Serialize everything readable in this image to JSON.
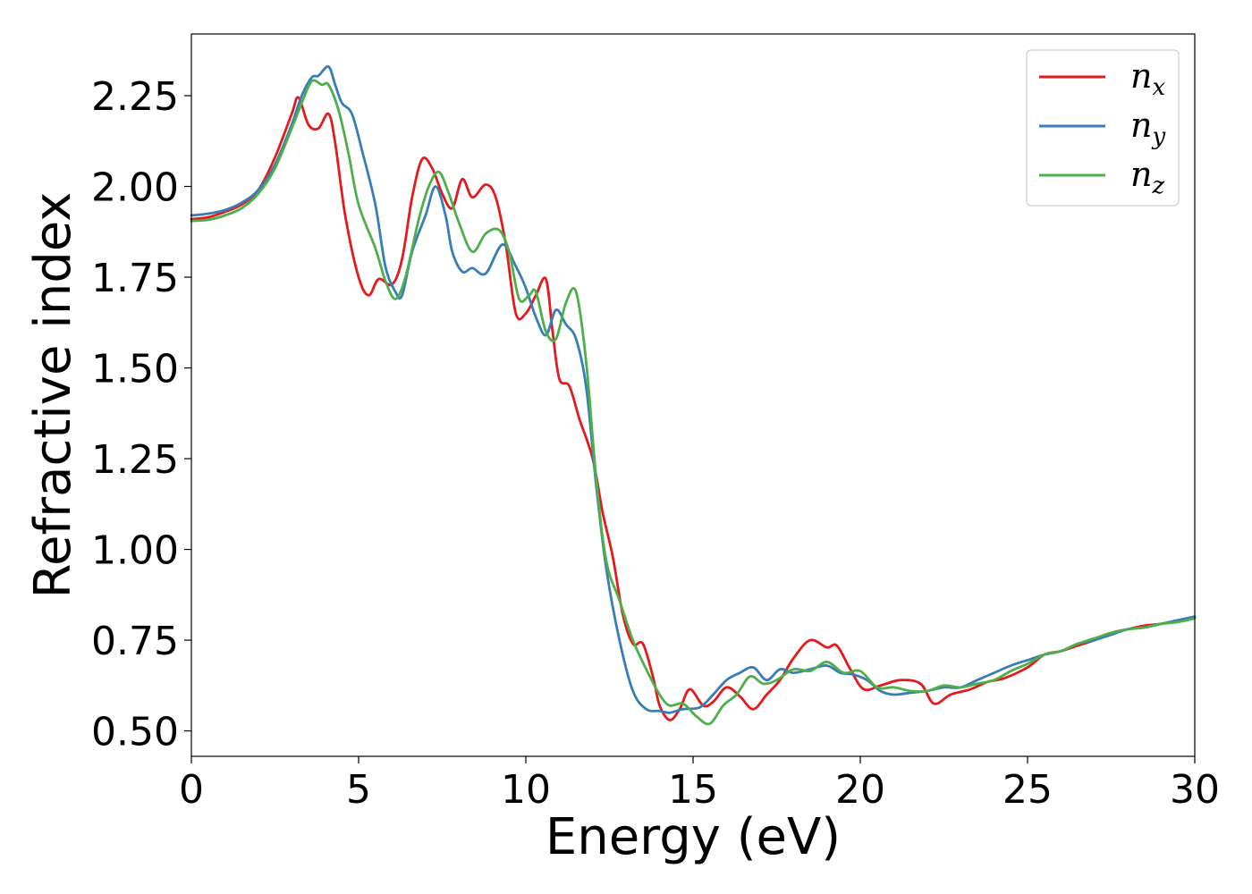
{
  "chart_data": {
    "type": "line",
    "title": "",
    "xlabel": "Energy (eV)",
    "ylabel": "Refractive index",
    "xlim": [
      0,
      30
    ],
    "ylim": [
      0.43,
      2.42
    ],
    "xticks": [
      0,
      5,
      10,
      15,
      20,
      25,
      30
    ],
    "xtick_labels": [
      "0",
      "5",
      "10",
      "15",
      "20",
      "25",
      "30"
    ],
    "yticks": [
      0.5,
      0.75,
      1.0,
      1.25,
      1.5,
      1.75,
      2.0,
      2.25
    ],
    "ytick_labels": [
      "0.50",
      "0.75",
      "1.00",
      "1.25",
      "1.50",
      "1.75",
      "2.00",
      "2.25"
    ],
    "grid": false,
    "legend_position": "top-right",
    "series": [
      {
        "name": "n",
        "subscript": "x",
        "color": "#e41a1c",
        "points": [
          [
            0,
            1.91
          ],
          [
            0.5,
            1.915
          ],
          [
            1,
            1.93
          ],
          [
            1.5,
            1.95
          ],
          [
            2,
            1.99
          ],
          [
            2.5,
            2.08
          ],
          [
            3,
            2.2
          ],
          [
            3.2,
            2.245
          ],
          [
            3.5,
            2.17
          ],
          [
            3.8,
            2.16
          ],
          [
            4.1,
            2.2
          ],
          [
            4.3,
            2.12
          ],
          [
            4.6,
            1.92
          ],
          [
            5,
            1.75
          ],
          [
            5.3,
            1.7
          ],
          [
            5.6,
            1.745
          ],
          [
            6,
            1.73
          ],
          [
            6.3,
            1.8
          ],
          [
            6.6,
            1.97
          ],
          [
            6.9,
            2.075
          ],
          [
            7.2,
            2.05
          ],
          [
            7.5,
            1.98
          ],
          [
            7.8,
            1.94
          ],
          [
            8.1,
            2.02
          ],
          [
            8.4,
            1.97
          ],
          [
            8.8,
            2.005
          ],
          [
            9.1,
            1.97
          ],
          [
            9.4,
            1.84
          ],
          [
            9.7,
            1.65
          ],
          [
            10,
            1.65
          ],
          [
            10.3,
            1.7
          ],
          [
            10.6,
            1.745
          ],
          [
            10.8,
            1.6
          ],
          [
            11,
            1.47
          ],
          [
            11.3,
            1.45
          ],
          [
            11.6,
            1.36
          ],
          [
            12,
            1.25
          ],
          [
            12.3,
            1.1
          ],
          [
            12.6,
            0.98
          ],
          [
            12.9,
            0.82
          ],
          [
            13.2,
            0.74
          ],
          [
            13.5,
            0.74
          ],
          [
            13.8,
            0.65
          ],
          [
            14,
            0.57
          ],
          [
            14.3,
            0.53
          ],
          [
            14.6,
            0.56
          ],
          [
            14.9,
            0.615
          ],
          [
            15.3,
            0.57
          ],
          [
            15.6,
            0.58
          ],
          [
            16,
            0.62
          ],
          [
            16.4,
            0.595
          ],
          [
            16.8,
            0.56
          ],
          [
            17.2,
            0.6
          ],
          [
            17.6,
            0.64
          ],
          [
            18,
            0.7
          ],
          [
            18.5,
            0.75
          ],
          [
            19,
            0.73
          ],
          [
            19.3,
            0.735
          ],
          [
            19.7,
            0.67
          ],
          [
            20.1,
            0.615
          ],
          [
            20.6,
            0.625
          ],
          [
            21.2,
            0.64
          ],
          [
            21.8,
            0.63
          ],
          [
            22.2,
            0.575
          ],
          [
            22.7,
            0.6
          ],
          [
            23.3,
            0.615
          ],
          [
            23.8,
            0.635
          ],
          [
            24.3,
            0.645
          ],
          [
            25,
            0.675
          ],
          [
            25.5,
            0.71
          ],
          [
            26,
            0.72
          ],
          [
            26.5,
            0.735
          ],
          [
            27,
            0.75
          ],
          [
            27.5,
            0.77
          ],
          [
            28,
            0.78
          ],
          [
            28.5,
            0.79
          ],
          [
            29,
            0.795
          ],
          [
            29.5,
            0.805
          ],
          [
            30,
            0.815
          ]
        ]
      },
      {
        "name": "n",
        "subscript": "y",
        "color": "#377eb8",
        "points": [
          [
            0,
            1.92
          ],
          [
            0.5,
            1.925
          ],
          [
            1,
            1.935
          ],
          [
            1.5,
            1.955
          ],
          [
            2,
            1.99
          ],
          [
            2.5,
            2.06
          ],
          [
            3,
            2.17
          ],
          [
            3.3,
            2.25
          ],
          [
            3.6,
            2.3
          ],
          [
            3.8,
            2.305
          ],
          [
            4.1,
            2.33
          ],
          [
            4.3,
            2.28
          ],
          [
            4.5,
            2.23
          ],
          [
            4.8,
            2.2
          ],
          [
            5.1,
            2.1
          ],
          [
            5.5,
            1.95
          ],
          [
            5.8,
            1.78
          ],
          [
            6.1,
            1.71
          ],
          [
            6.3,
            1.7
          ],
          [
            6.6,
            1.82
          ],
          [
            7,
            1.92
          ],
          [
            7.3,
            2.0
          ],
          [
            7.6,
            1.92
          ],
          [
            7.8,
            1.82
          ],
          [
            8.1,
            1.765
          ],
          [
            8.4,
            1.775
          ],
          [
            8.8,
            1.76
          ],
          [
            9.3,
            1.84
          ],
          [
            9.7,
            1.78
          ],
          [
            10,
            1.72
          ],
          [
            10.3,
            1.64
          ],
          [
            10.6,
            1.59
          ],
          [
            10.9,
            1.66
          ],
          [
            11.2,
            1.62
          ],
          [
            11.5,
            1.58
          ],
          [
            11.8,
            1.45
          ],
          [
            12.1,
            1.18
          ],
          [
            12.4,
            0.95
          ],
          [
            12.8,
            0.75
          ],
          [
            13.2,
            0.61
          ],
          [
            13.6,
            0.56
          ],
          [
            14,
            0.555
          ],
          [
            14.3,
            0.55
          ],
          [
            14.7,
            0.56
          ],
          [
            15.2,
            0.565
          ],
          [
            15.6,
            0.6
          ],
          [
            16,
            0.64
          ],
          [
            16.4,
            0.66
          ],
          [
            16.8,
            0.675
          ],
          [
            17.2,
            0.64
          ],
          [
            17.6,
            0.67
          ],
          [
            18,
            0.66
          ],
          [
            18.5,
            0.67
          ],
          [
            19,
            0.68
          ],
          [
            19.4,
            0.66
          ],
          [
            19.8,
            0.655
          ],
          [
            20.2,
            0.64
          ],
          [
            20.6,
            0.61
          ],
          [
            21,
            0.6
          ],
          [
            21.5,
            0.605
          ],
          [
            22,
            0.61
          ],
          [
            22.5,
            0.62
          ],
          [
            23,
            0.62
          ],
          [
            23.5,
            0.64
          ],
          [
            24,
            0.66
          ],
          [
            24.5,
            0.68
          ],
          [
            25,
            0.695
          ],
          [
            25.5,
            0.71
          ],
          [
            26,
            0.72
          ],
          [
            26.5,
            0.74
          ],
          [
            27,
            0.75
          ],
          [
            27.5,
            0.765
          ],
          [
            28,
            0.78
          ],
          [
            28.5,
            0.785
          ],
          [
            29,
            0.795
          ],
          [
            29.5,
            0.805
          ],
          [
            30,
            0.815
          ]
        ]
      },
      {
        "name": "n",
        "subscript": "z",
        "color": "#4daf4a",
        "points": [
          [
            0,
            1.905
          ],
          [
            0.5,
            1.908
          ],
          [
            1,
            1.92
          ],
          [
            1.5,
            1.94
          ],
          [
            2,
            1.98
          ],
          [
            2.5,
            2.05
          ],
          [
            3,
            2.16
          ],
          [
            3.3,
            2.23
          ],
          [
            3.6,
            2.29
          ],
          [
            3.9,
            2.28
          ],
          [
            4.1,
            2.28
          ],
          [
            4.4,
            2.21
          ],
          [
            4.7,
            2.09
          ],
          [
            5,
            1.95
          ],
          [
            5.5,
            1.83
          ],
          [
            5.8,
            1.74
          ],
          [
            6.1,
            1.69
          ],
          [
            6.4,
            1.75
          ],
          [
            6.8,
            1.91
          ],
          [
            7.1,
            2.0
          ],
          [
            7.4,
            2.04
          ],
          [
            7.7,
            1.98
          ],
          [
            8,
            1.9
          ],
          [
            8.4,
            1.82
          ],
          [
            8.8,
            1.87
          ],
          [
            9.2,
            1.88
          ],
          [
            9.5,
            1.82
          ],
          [
            9.8,
            1.69
          ],
          [
            10.1,
            1.7
          ],
          [
            10.3,
            1.71
          ],
          [
            10.6,
            1.6
          ],
          [
            10.9,
            1.58
          ],
          [
            11.2,
            1.68
          ],
          [
            11.5,
            1.71
          ],
          [
            11.8,
            1.52
          ],
          [
            12.1,
            1.2
          ],
          [
            12.4,
            0.97
          ],
          [
            12.8,
            0.86
          ],
          [
            13.2,
            0.75
          ],
          [
            13.6,
            0.67
          ],
          [
            14,
            0.6
          ],
          [
            14.3,
            0.57
          ],
          [
            14.7,
            0.575
          ],
          [
            15.1,
            0.54
          ],
          [
            15.5,
            0.52
          ],
          [
            15.9,
            0.57
          ],
          [
            16.3,
            0.6
          ],
          [
            16.7,
            0.65
          ],
          [
            17.1,
            0.63
          ],
          [
            17.5,
            0.64
          ],
          [
            18,
            0.67
          ],
          [
            18.5,
            0.665
          ],
          [
            19,
            0.69
          ],
          [
            19.5,
            0.66
          ],
          [
            20,
            0.665
          ],
          [
            20.5,
            0.62
          ],
          [
            21,
            0.62
          ],
          [
            21.5,
            0.61
          ],
          [
            22,
            0.61
          ],
          [
            22.5,
            0.625
          ],
          [
            23,
            0.62
          ],
          [
            23.5,
            0.63
          ],
          [
            24,
            0.64
          ],
          [
            24.5,
            0.665
          ],
          [
            25,
            0.685
          ],
          [
            25.5,
            0.71
          ],
          [
            26,
            0.72
          ],
          [
            26.5,
            0.74
          ],
          [
            27,
            0.755
          ],
          [
            27.5,
            0.77
          ],
          [
            28,
            0.78
          ],
          [
            28.5,
            0.785
          ],
          [
            29,
            0.795
          ],
          [
            29.5,
            0.8
          ],
          [
            30,
            0.81
          ]
        ]
      }
    ]
  }
}
